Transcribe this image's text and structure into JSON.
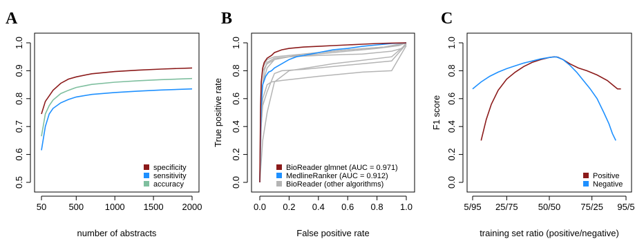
{
  "chart_data": [
    {
      "panel": "A",
      "type": "line",
      "xlabel": "number of abstracts",
      "ylabel": "",
      "xlim": [
        50,
        2000
      ],
      "ylim": [
        0.5,
        1.0
      ],
      "xticks": [
        50,
        500,
        1000,
        1500,
        2000
      ],
      "yticks": [
        0.5,
        0.6,
        0.7,
        0.8,
        0.9,
        1.0
      ],
      "x": [
        50,
        100,
        150,
        200,
        300,
        400,
        500,
        700,
        1000,
        1300,
        1600,
        2000
      ],
      "series": [
        {
          "name": "specificity",
          "color": "#8b1a1a",
          "values": [
            0.745,
            0.79,
            0.81,
            0.83,
            0.855,
            0.87,
            0.878,
            0.889,
            0.897,
            0.902,
            0.906,
            0.91
          ]
        },
        {
          "name": "sensitivity",
          "color": "#1e90ff",
          "values": [
            0.615,
            0.7,
            0.745,
            0.765,
            0.785,
            0.797,
            0.806,
            0.815,
            0.822,
            0.827,
            0.831,
            0.835
          ]
        },
        {
          "name": "accuracy",
          "color": "#7fbf9f",
          "values": [
            0.665,
            0.745,
            0.775,
            0.795,
            0.818,
            0.83,
            0.84,
            0.851,
            0.859,
            0.864,
            0.868,
            0.872
          ]
        }
      ],
      "legend": "bottom-right"
    },
    {
      "panel": "B",
      "type": "line",
      "xlabel": "False positive rate",
      "ylabel": "True positive rate",
      "xlim": [
        0,
        1
      ],
      "ylim": [
        0,
        1
      ],
      "xticks": [
        0.0,
        0.2,
        0.4,
        0.6,
        0.8,
        1.0
      ],
      "yticks": [
        0.0,
        0.2,
        0.4,
        0.6,
        0.8,
        1.0
      ],
      "series": [
        {
          "name": "BioReader (other algorithms)",
          "color": "#b4b4b4",
          "kind": "other",
          "curves": [
            {
              "x": [
                0,
                0.005,
                0.01,
                0.02,
                0.05,
                0.1,
                0.2,
                0.4,
                0.7,
                0.9,
                0.97,
                1.0
              ],
              "y": [
                0,
                0.5,
                0.72,
                0.8,
                0.85,
                0.88,
                0.9,
                0.91,
                0.92,
                0.94,
                0.96,
                1.0
              ]
            },
            {
              "x": [
                0,
                0.005,
                0.01,
                0.03,
                0.05,
                0.1,
                0.3,
                0.6,
                0.85,
                0.95,
                1.0
              ],
              "y": [
                0,
                0.45,
                0.65,
                0.75,
                0.82,
                0.88,
                0.92,
                0.95,
                0.97,
                0.99,
                1.0
              ]
            },
            {
              "x": [
                0,
                0.005,
                0.01,
                0.02,
                0.05,
                0.08,
                0.15,
                0.4,
                0.7,
                0.9,
                1.0
              ],
              "y": [
                0,
                0.2,
                0.4,
                0.6,
                0.7,
                0.72,
                0.73,
                0.76,
                0.79,
                0.8,
                0.98
              ]
            },
            {
              "x": [
                0,
                0.005,
                0.02,
                0.05,
                0.1,
                0.15,
                0.3,
                0.6,
                0.9,
                1.0
              ],
              "y": [
                0,
                0.35,
                0.55,
                0.65,
                0.78,
                0.8,
                0.81,
                0.84,
                0.87,
                0.99
              ]
            },
            {
              "x": [
                0,
                0.01,
                0.03,
                0.05,
                0.1,
                0.2,
                0.5,
                0.8,
                0.95,
                1.0
              ],
              "y": [
                0,
                0.6,
                0.8,
                0.86,
                0.89,
                0.9,
                0.93,
                0.96,
                0.98,
                1.0
              ]
            },
            {
              "x": [
                0,
                0.01,
                0.02,
                0.05,
                0.1,
                0.2,
                0.4,
                0.6,
                0.85,
                0.97,
                1.0
              ],
              "y": [
                0,
                0.7,
                0.82,
                0.88,
                0.9,
                0.91,
                0.93,
                0.95,
                0.97,
                0.99,
                1.0
              ]
            },
            {
              "x": [
                0,
                0.02,
                0.05,
                0.1,
                0.2,
                0.5,
                0.9,
                1.0
              ],
              "y": [
                0,
                0.3,
                0.5,
                0.72,
                0.8,
                0.85,
                0.9,
                0.99
              ]
            }
          ]
        },
        {
          "name": "MedlineRanker (AUC = 0.912)",
          "color": "#1e90ff",
          "x": [
            0,
            0.005,
            0.01,
            0.02,
            0.04,
            0.06,
            0.08,
            0.1,
            0.15,
            0.2,
            0.25,
            0.3,
            0.35,
            0.4,
            0.5,
            0.6,
            0.7,
            0.8,
            0.9,
            1.0
          ],
          "y": [
            0,
            0.35,
            0.55,
            0.7,
            0.76,
            0.79,
            0.8,
            0.82,
            0.85,
            0.88,
            0.9,
            0.91,
            0.92,
            0.93,
            0.95,
            0.96,
            0.975,
            0.985,
            0.995,
            1.0
          ]
        },
        {
          "name": "BioReader glmnet (AUC = 0.971)",
          "color": "#8b1a1a",
          "x": [
            0,
            0.005,
            0.01,
            0.02,
            0.03,
            0.05,
            0.08,
            0.1,
            0.15,
            0.2,
            0.3,
            0.4,
            0.5,
            0.6,
            0.7,
            0.8,
            0.9,
            1.0
          ],
          "y": [
            0,
            0.55,
            0.72,
            0.82,
            0.86,
            0.89,
            0.91,
            0.93,
            0.95,
            0.96,
            0.97,
            0.975,
            0.98,
            0.985,
            0.99,
            0.995,
            0.998,
            1.0
          ]
        }
      ],
      "legend": "bottom-right"
    },
    {
      "panel": "C",
      "type": "line",
      "xlabel": "training set ratio (positive/negative)",
      "ylabel": "F1 score",
      "xlim": [
        5,
        95
      ],
      "ylim": [
        0,
        1
      ],
      "xtick_values": [
        5,
        25,
        50,
        75,
        95
      ],
      "xtick_labels": [
        "5/95",
        "25/75",
        "50/50",
        "75/25",
        "95/5"
      ],
      "yticks": [
        0.0,
        0.2,
        0.4,
        0.6,
        0.8,
        1.0
      ],
      "series": [
        {
          "name": "Positive",
          "color": "#8b1a1a",
          "x": [
            10,
            13,
            16,
            20,
            25,
            30,
            35,
            40,
            45,
            50,
            53,
            55,
            58,
            62,
            67,
            72,
            78,
            84,
            88,
            90,
            92
          ],
          "y": [
            0.3,
            0.45,
            0.56,
            0.66,
            0.74,
            0.79,
            0.83,
            0.86,
            0.88,
            0.895,
            0.9,
            0.897,
            0.88,
            0.85,
            0.82,
            0.8,
            0.77,
            0.73,
            0.69,
            0.67,
            0.67
          ]
        },
        {
          "name": "Negative",
          "color": "#1e90ff",
          "x": [
            5,
            10,
            15,
            20,
            25,
            30,
            35,
            40,
            45,
            50,
            54,
            58,
            62,
            66,
            70,
            74,
            78,
            82,
            85,
            87,
            89
          ],
          "y": [
            0.67,
            0.72,
            0.76,
            0.79,
            0.815,
            0.835,
            0.855,
            0.87,
            0.885,
            0.895,
            0.9,
            0.88,
            0.84,
            0.79,
            0.73,
            0.67,
            0.6,
            0.5,
            0.42,
            0.35,
            0.3
          ]
        }
      ],
      "legend": "bottom-right"
    }
  ]
}
